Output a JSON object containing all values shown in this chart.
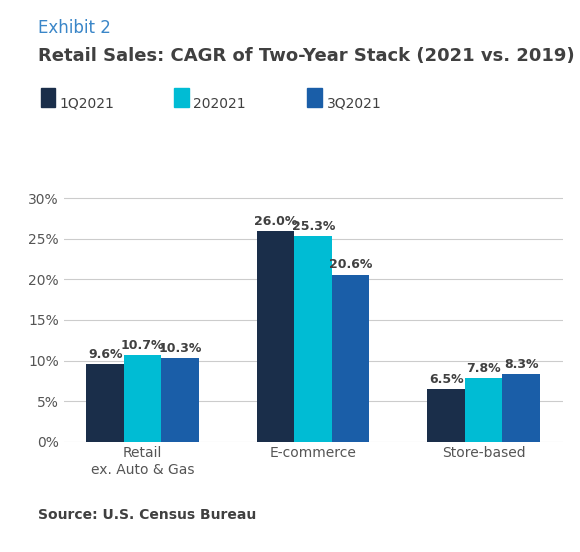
{
  "exhibit_label": "Exhibit 2",
  "title": "Retail Sales: CAGR of Two-Year Stack (2021 vs. 2019)",
  "exhibit_color": "#3a86c8",
  "title_color": "#404040",
  "categories": [
    "Retail\nex. Auto & Gas",
    "E-commerce",
    "Store-based"
  ],
  "series": [
    {
      "label": "1Q2021",
      "color": "#1a2e4a",
      "values": [
        9.6,
        26.0,
        6.5
      ]
    },
    {
      "label": "202021",
      "color": "#00bcd4",
      "values": [
        10.7,
        25.3,
        7.8
      ]
    },
    {
      "label": "3Q2021",
      "color": "#1a5ea8",
      "values": [
        10.3,
        20.6,
        8.3
      ]
    }
  ],
  "ylim": [
    0,
    32
  ],
  "yticks": [
    0,
    5,
    10,
    15,
    20,
    25,
    30
  ],
  "source_text": "Source: U.S. Census Bureau",
  "background_color": "#ffffff",
  "grid_color": "#cccccc",
  "bar_width": 0.22,
  "value_label_fontsize": 9,
  "value_label_color": "#404040",
  "axis_label_color": "#555555",
  "tick_label_fontsize": 10,
  "legend_fontsize": 10,
  "exhibit_fontsize": 12,
  "title_fontsize": 13
}
